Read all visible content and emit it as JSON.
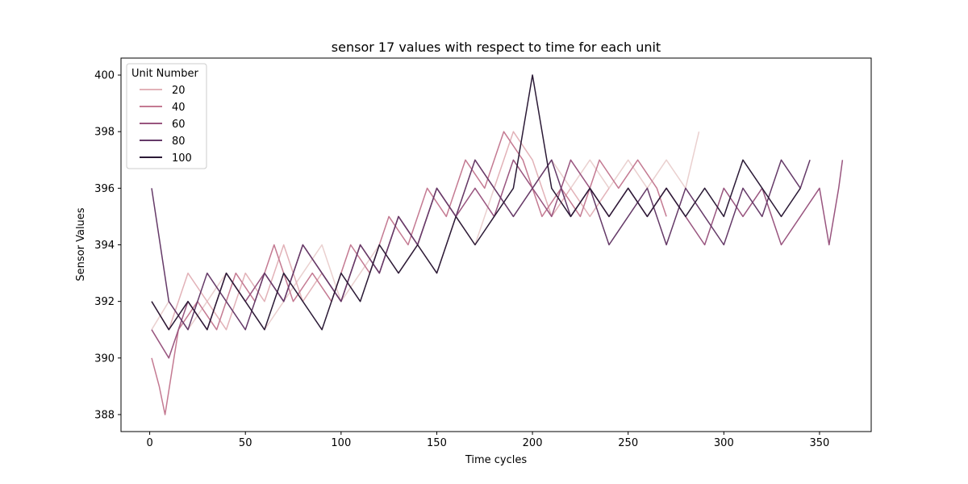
{
  "chart_data": {
    "type": "line",
    "title": "sensor 17 values with respect to time for each unit",
    "xlabel": "Time cycles",
    "ylabel": "Sensor Values",
    "xlim": [
      -15,
      377
    ],
    "ylim": [
      387.4,
      400.6
    ],
    "x_ticks": [
      0,
      50,
      100,
      150,
      200,
      250,
      300,
      350
    ],
    "y_ticks": [
      388,
      390,
      392,
      394,
      396,
      398,
      400
    ],
    "grid": false,
    "legend": {
      "title": "Unit Number",
      "placement": "top-left",
      "entries": [
        {
          "label": "20",
          "color": "#e2b2b8"
        },
        {
          "label": "40",
          "color": "#c47a92"
        },
        {
          "label": "60",
          "color": "#99557f"
        },
        {
          "label": "80",
          "color": "#653a68"
        },
        {
          "label": "100",
          "color": "#2b1a36"
        }
      ]
    },
    "series": [
      {
        "unit": 5,
        "color": "#ead0cf",
        "values": [
          [
            1,
            391
          ],
          [
            10,
            392
          ],
          [
            20,
            391
          ],
          [
            30,
            392
          ],
          [
            40,
            393
          ],
          [
            50,
            392
          ],
          [
            60,
            391
          ],
          [
            70,
            392
          ],
          [
            80,
            393
          ],
          [
            90,
            394
          ],
          [
            100,
            392
          ],
          [
            110,
            393
          ],
          [
            120,
            394
          ],
          [
            130,
            393
          ],
          [
            140,
            394
          ],
          [
            150,
            393
          ],
          [
            160,
            395
          ],
          [
            170,
            394
          ],
          [
            180,
            396
          ],
          [
            190,
            395
          ],
          [
            200,
            396
          ],
          [
            210,
            397
          ],
          [
            220,
            396
          ],
          [
            230,
            397
          ],
          [
            240,
            396
          ],
          [
            250,
            397
          ],
          [
            260,
            396
          ],
          [
            270,
            397
          ],
          [
            280,
            396
          ],
          [
            287,
            398
          ]
        ]
      },
      {
        "unit": 20,
        "color": "#e2b2b8",
        "values": [
          [
            1,
            392
          ],
          [
            10,
            391
          ],
          [
            20,
            393
          ],
          [
            30,
            392
          ],
          [
            40,
            391
          ],
          [
            50,
            393
          ],
          [
            60,
            392
          ],
          [
            70,
            394
          ],
          [
            80,
            392
          ],
          [
            90,
            393
          ],
          [
            100,
            392
          ],
          [
            110,
            394
          ],
          [
            120,
            393
          ],
          [
            130,
            395
          ],
          [
            140,
            394
          ],
          [
            150,
            396
          ],
          [
            160,
            395
          ],
          [
            170,
            397
          ],
          [
            180,
            396
          ],
          [
            190,
            398
          ],
          [
            200,
            397
          ],
          [
            210,
            395
          ],
          [
            220,
            396
          ],
          [
            230,
            395
          ],
          [
            240,
            396
          ]
        ]
      },
      {
        "unit": 40,
        "color": "#c47a92",
        "values": [
          [
            1,
            390
          ],
          [
            5,
            389
          ],
          [
            8,
            388
          ],
          [
            15,
            391
          ],
          [
            25,
            392
          ],
          [
            35,
            391
          ],
          [
            45,
            393
          ],
          [
            55,
            392
          ],
          [
            65,
            394
          ],
          [
            75,
            392
          ],
          [
            85,
            393
          ],
          [
            95,
            392
          ],
          [
            105,
            394
          ],
          [
            115,
            393
          ],
          [
            125,
            395
          ],
          [
            135,
            394
          ],
          [
            145,
            396
          ],
          [
            155,
            395
          ],
          [
            165,
            397
          ],
          [
            175,
            396
          ],
          [
            185,
            398
          ],
          [
            195,
            397
          ],
          [
            205,
            395
          ],
          [
            215,
            396
          ],
          [
            225,
            395
          ],
          [
            235,
            397
          ],
          [
            245,
            396
          ],
          [
            255,
            397
          ],
          [
            265,
            396
          ],
          [
            270,
            395
          ]
        ]
      },
      {
        "unit": 60,
        "color": "#99557f",
        "values": [
          [
            1,
            391
          ],
          [
            10,
            390
          ],
          [
            20,
            392
          ],
          [
            30,
            391
          ],
          [
            40,
            393
          ],
          [
            50,
            392
          ],
          [
            60,
            393
          ],
          [
            70,
            392
          ],
          [
            80,
            394
          ],
          [
            90,
            393
          ],
          [
            100,
            392
          ],
          [
            110,
            394
          ],
          [
            120,
            393
          ],
          [
            130,
            395
          ],
          [
            140,
            394
          ],
          [
            150,
            396
          ],
          [
            160,
            395
          ],
          [
            170,
            396
          ],
          [
            180,
            395
          ],
          [
            190,
            397
          ],
          [
            200,
            396
          ],
          [
            210,
            395
          ],
          [
            220,
            397
          ],
          [
            230,
            396
          ],
          [
            240,
            395
          ],
          [
            250,
            396
          ],
          [
            260,
            395
          ],
          [
            270,
            396
          ],
          [
            280,
            395
          ],
          [
            290,
            394
          ],
          [
            300,
            396
          ],
          [
            310,
            395
          ],
          [
            320,
            396
          ],
          [
            330,
            394
          ],
          [
            340,
            395
          ],
          [
            350,
            396
          ],
          [
            355,
            394
          ],
          [
            360,
            396
          ],
          [
            362,
            397
          ]
        ]
      },
      {
        "unit": 80,
        "color": "#653a68",
        "values": [
          [
            1,
            396
          ],
          [
            10,
            392
          ],
          [
            20,
            391
          ],
          [
            30,
            393
          ],
          [
            40,
            392
          ],
          [
            50,
            391
          ],
          [
            60,
            393
          ],
          [
            70,
            392
          ],
          [
            80,
            394
          ],
          [
            90,
            393
          ],
          [
            100,
            392
          ],
          [
            110,
            394
          ],
          [
            120,
            393
          ],
          [
            130,
            395
          ],
          [
            140,
            394
          ],
          [
            150,
            396
          ],
          [
            160,
            395
          ],
          [
            170,
            397
          ],
          [
            180,
            396
          ],
          [
            190,
            395
          ],
          [
            200,
            396
          ],
          [
            210,
            397
          ],
          [
            220,
            395
          ],
          [
            230,
            396
          ],
          [
            240,
            394
          ],
          [
            250,
            395
          ],
          [
            260,
            396
          ],
          [
            270,
            394
          ],
          [
            280,
            396
          ],
          [
            290,
            395
          ],
          [
            300,
            394
          ],
          [
            310,
            396
          ],
          [
            320,
            395
          ],
          [
            330,
            397
          ],
          [
            340,
            396
          ],
          [
            345,
            397
          ]
        ]
      },
      {
        "unit": 100,
        "color": "#2b1a36",
        "values": [
          [
            1,
            392
          ],
          [
            10,
            391
          ],
          [
            20,
            392
          ],
          [
            30,
            391
          ],
          [
            40,
            393
          ],
          [
            50,
            392
          ],
          [
            60,
            391
          ],
          [
            70,
            393
          ],
          [
            80,
            392
          ],
          [
            90,
            391
          ],
          [
            100,
            393
          ],
          [
            110,
            392
          ],
          [
            120,
            394
          ],
          [
            130,
            393
          ],
          [
            140,
            394
          ],
          [
            150,
            393
          ],
          [
            160,
            395
          ],
          [
            170,
            394
          ],
          [
            180,
            395
          ],
          [
            190,
            396
          ],
          [
            200,
            400
          ],
          [
            210,
            396
          ],
          [
            220,
            395
          ],
          [
            230,
            396
          ],
          [
            240,
            395
          ],
          [
            250,
            396
          ],
          [
            260,
            395
          ],
          [
            270,
            396
          ],
          [
            280,
            395
          ],
          [
            290,
            396
          ],
          [
            300,
            395
          ],
          [
            310,
            397
          ],
          [
            320,
            396
          ],
          [
            330,
            395
          ],
          [
            340,
            396
          ]
        ]
      }
    ]
  }
}
